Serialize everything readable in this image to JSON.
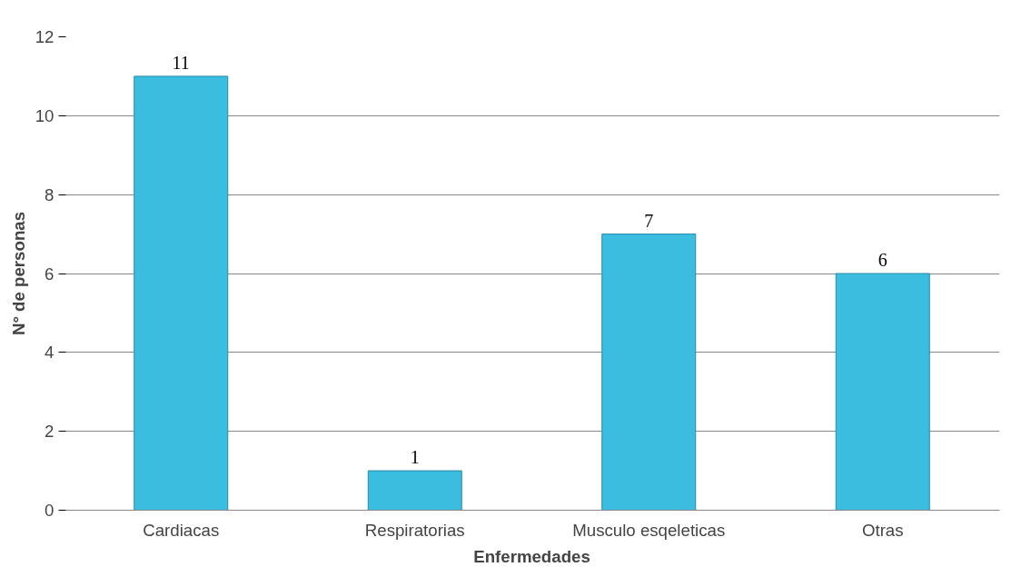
{
  "chart_data": {
    "type": "bar",
    "xlabel": "Enfermedades",
    "ylabel": "N° de personas",
    "categories": [
      "Cardiacas",
      "Respiratorias",
      "Musculo esqeleticas",
      "Otras"
    ],
    "values": [
      11,
      1,
      7,
      6
    ],
    "color": "#3bbde0",
    "ylim": [
      0,
      12
    ],
    "yticks": [
      0,
      2,
      4,
      6,
      8,
      10,
      12
    ],
    "grid": "y",
    "data_labels": true
  }
}
